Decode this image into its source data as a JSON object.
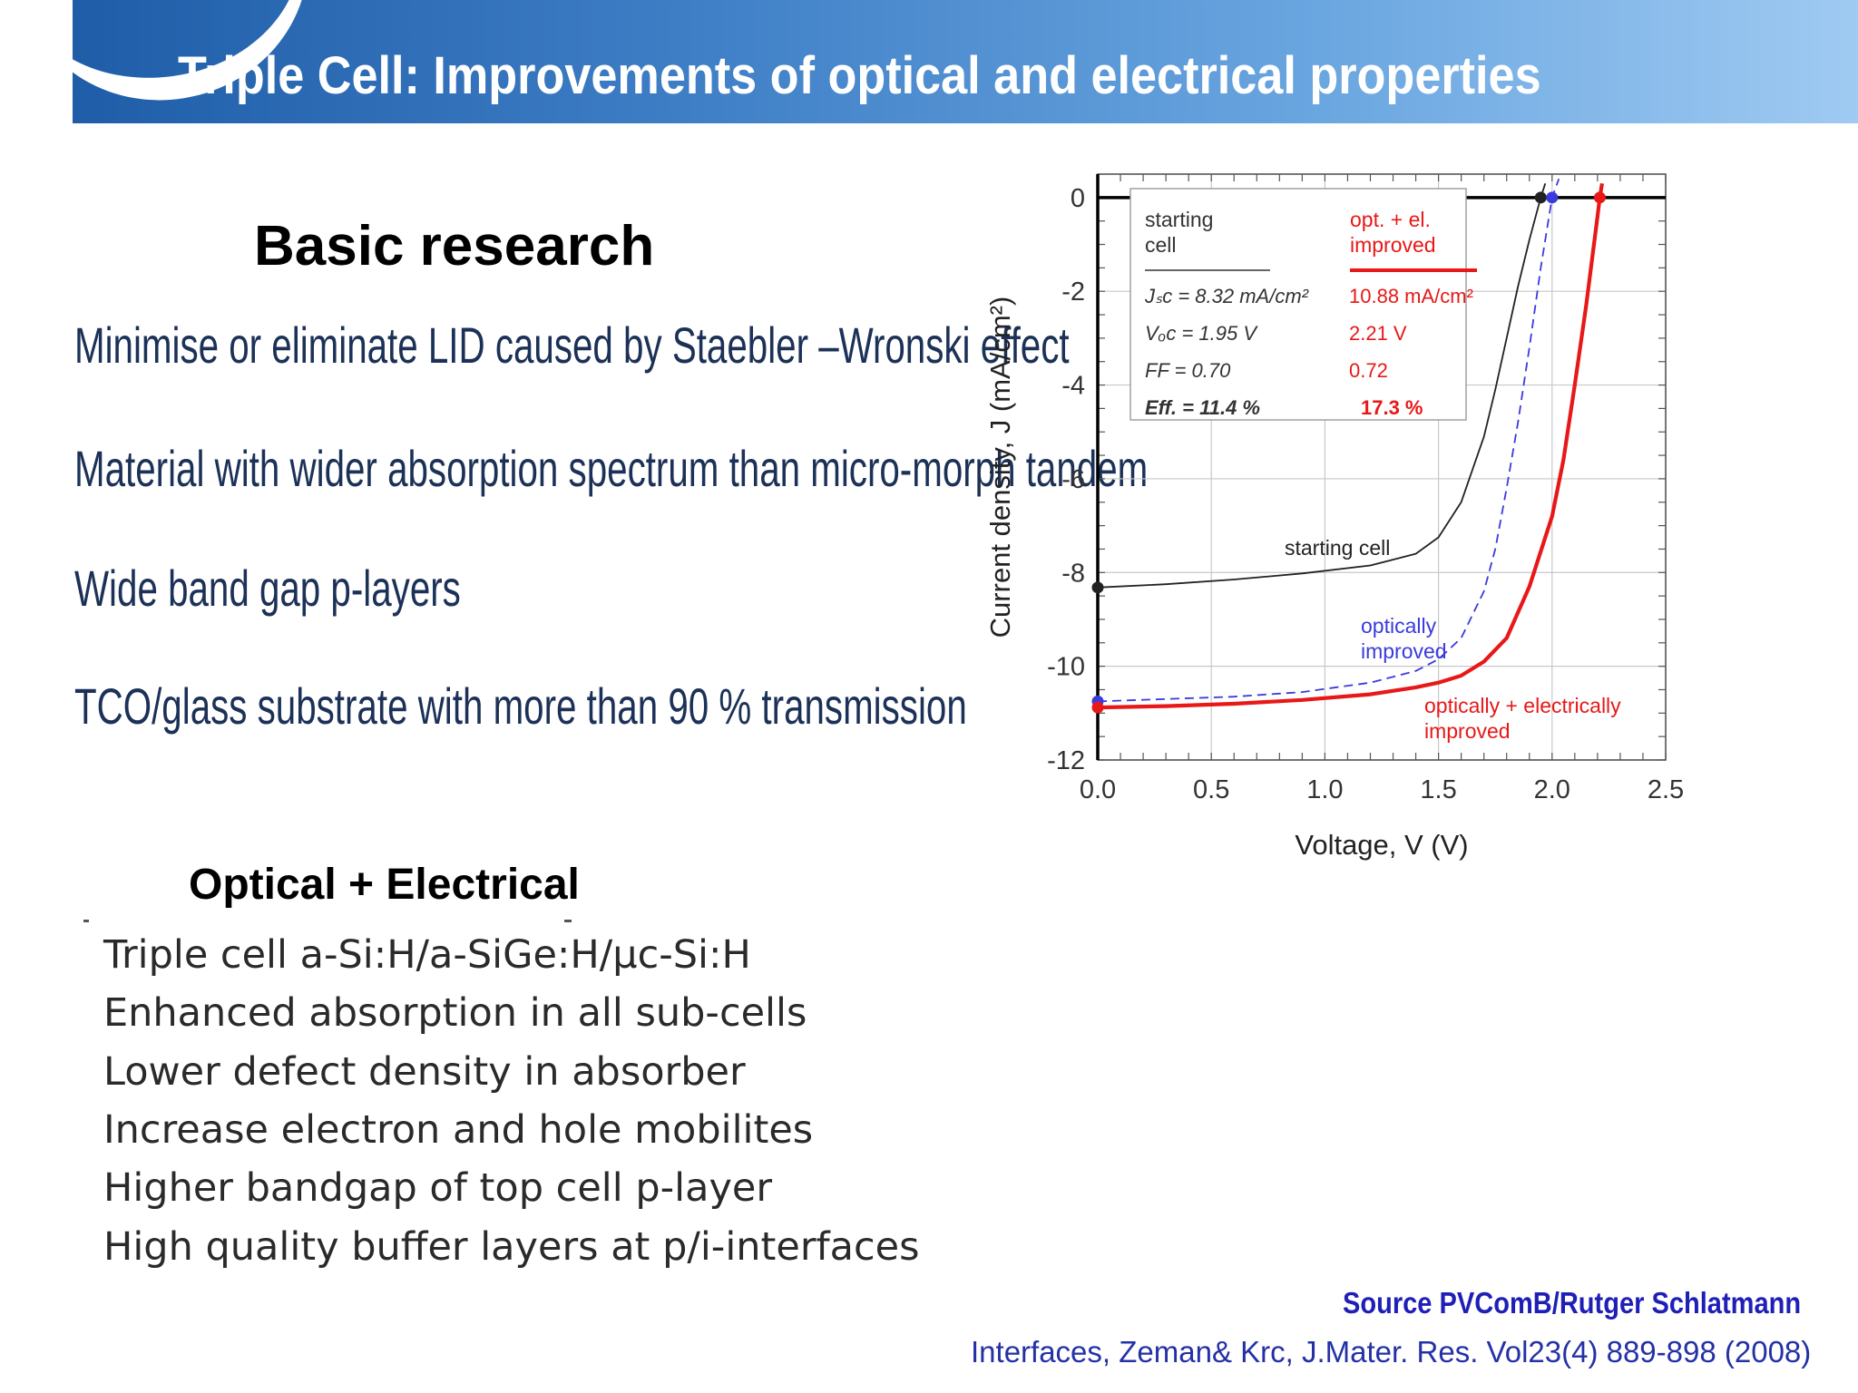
{
  "header": {
    "title": "Triple Cell: Improvements of optical and electrical properties"
  },
  "basic_research": {
    "title": "Basic research",
    "items": [
      "Minimise or eliminate LID caused by Staebler –Wronski effect",
      "Material with wider absorption spectrum than micro-morph tandem",
      "Wide band gap p-layers",
      "TCO/glass substrate with more than 90 % transmission"
    ]
  },
  "optical_electrical": {
    "title": "Optical + Electrical",
    "items": [
      "Triple cell a-Si:H/a-SiGe:H/μc-Si:H",
      "Enhanced absorption in all sub-cells",
      "Lower defect density in absorber",
      "Increase electron and hole mobilites",
      "Higher bandgap of top cell p-layer",
      "High quality buffer layers at p/i-interfaces"
    ]
  },
  "footer": {
    "source": "Source PVComB/Rutger Schlatmann",
    "reference": "Interfaces, Zeman& Krc, J.Mater. Res. Vol23(4) 889-898 (2008)"
  },
  "chart_data": {
    "type": "line",
    "xlabel": "Voltage, V (V)",
    "ylabel": "Current density, J (mA/cm²)",
    "xlim": [
      0.0,
      2.5
    ],
    "ylim": [
      -12,
      0.5
    ],
    "xticks": [
      "0.0",
      "0.5",
      "1.0",
      "1.5",
      "2.0",
      "2.5"
    ],
    "yticks": [
      "0",
      "-2",
      "-4",
      "-6",
      "-8",
      "-10",
      "-12"
    ],
    "grid": true,
    "colors": {
      "starting": "#222222",
      "optical": "#3a3adf",
      "optical_electrical": "#e81818"
    },
    "series": [
      {
        "name": "starting cell",
        "style": "solid-thin",
        "x": [
          0.0,
          0.3,
          0.6,
          0.9,
          1.2,
          1.4,
          1.5,
          1.6,
          1.7,
          1.75,
          1.8,
          1.85,
          1.9,
          1.95,
          1.97
        ],
        "y": [
          -8.32,
          -8.25,
          -8.15,
          -8.02,
          -7.85,
          -7.6,
          -7.25,
          -6.5,
          -5.1,
          -4.1,
          -3.0,
          -1.9,
          -0.9,
          0.0,
          0.3
        ]
      },
      {
        "name": "optically improved",
        "style": "dashed",
        "x": [
          0.0,
          0.3,
          0.6,
          0.9,
          1.2,
          1.4,
          1.5,
          1.6,
          1.7,
          1.75,
          1.8,
          1.85,
          1.9,
          1.95,
          2.0,
          2.03
        ],
        "y": [
          -10.75,
          -10.7,
          -10.65,
          -10.55,
          -10.35,
          -10.1,
          -9.85,
          -9.4,
          -8.4,
          -7.5,
          -6.2,
          -4.8,
          -3.2,
          -1.5,
          0.0,
          0.4
        ]
      },
      {
        "name": "optically + electrically improved",
        "style": "solid-thick",
        "x": [
          0.0,
          0.3,
          0.6,
          0.9,
          1.2,
          1.4,
          1.5,
          1.6,
          1.7,
          1.8,
          1.9,
          2.0,
          2.05,
          2.1,
          2.15,
          2.2,
          2.21,
          2.22
        ],
        "y": [
          -10.88,
          -10.85,
          -10.8,
          -10.72,
          -10.6,
          -10.45,
          -10.35,
          -10.2,
          -9.9,
          -9.4,
          -8.3,
          -6.8,
          -5.6,
          -4.0,
          -2.3,
          -0.4,
          0.0,
          0.3
        ]
      }
    ],
    "markers": [
      {
        "series": "starting",
        "x": 0.0,
        "y": -8.32
      },
      {
        "series": "optical",
        "x": 0.0,
        "y": -10.75
      },
      {
        "series": "optical_electrical",
        "x": 0.0,
        "y": -10.88
      },
      {
        "series": "starting",
        "x": 1.95,
        "y": 0.0
      },
      {
        "series": "optical",
        "x": 2.0,
        "y": 0.0
      },
      {
        "series": "optical_electrical",
        "x": 2.21,
        "y": 0.0
      }
    ],
    "table": {
      "starting_header": [
        "starting",
        "cell"
      ],
      "improved_header": [
        "opt. + el.",
        "improved"
      ],
      "rows": [
        {
          "label": "Jₛᴄ =",
          "start": "8.32 mA/cm²",
          "improved": "10.88 mA/cm²"
        },
        {
          "label": "Vₒᴄ =",
          "start": "1.95 V",
          "improved": "2.21 V"
        },
        {
          "label": "FF =",
          "start": "0.70",
          "improved": "0.72"
        },
        {
          "label": "Eff. =",
          "start": "11.4 %",
          "improved": "17.3 %"
        }
      ]
    },
    "annotations": [
      {
        "text": "starting cell",
        "series": "starting"
      },
      {
        "text": "optically",
        "series": "optical"
      },
      {
        "text": "improved",
        "series": "optical"
      },
      {
        "text": "optically + electrically",
        "series": "optical_electrical"
      },
      {
        "text": "improved",
        "series": "optical_electrical"
      }
    ]
  }
}
